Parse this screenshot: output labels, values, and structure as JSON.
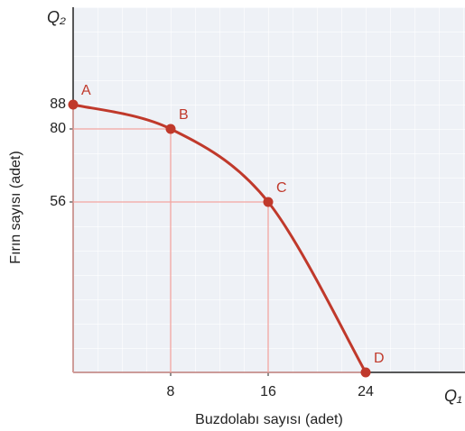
{
  "chart_data": {
    "type": "line",
    "x_axis_symbol": "Q₁",
    "y_axis_symbol": "Q₂",
    "x_label": "Buzdolabı sayısı (adet)",
    "y_label": "Fırın sayısı (adet)",
    "x": [
      0,
      8,
      16,
      24
    ],
    "series": [
      {
        "name": "A B C D",
        "color": "#c0392b",
        "values": [
          88,
          80,
          56,
          0
        ],
        "point_labels": [
          "A",
          "B",
          "C",
          "D"
        ]
      }
    ],
    "xlim": [
      0,
      32
    ],
    "ylim": [
      0,
      120
    ],
    "xticks": [
      8,
      16,
      24
    ],
    "yticks": [
      56,
      80,
      88
    ],
    "guide_color": "#f2a5a0"
  }
}
